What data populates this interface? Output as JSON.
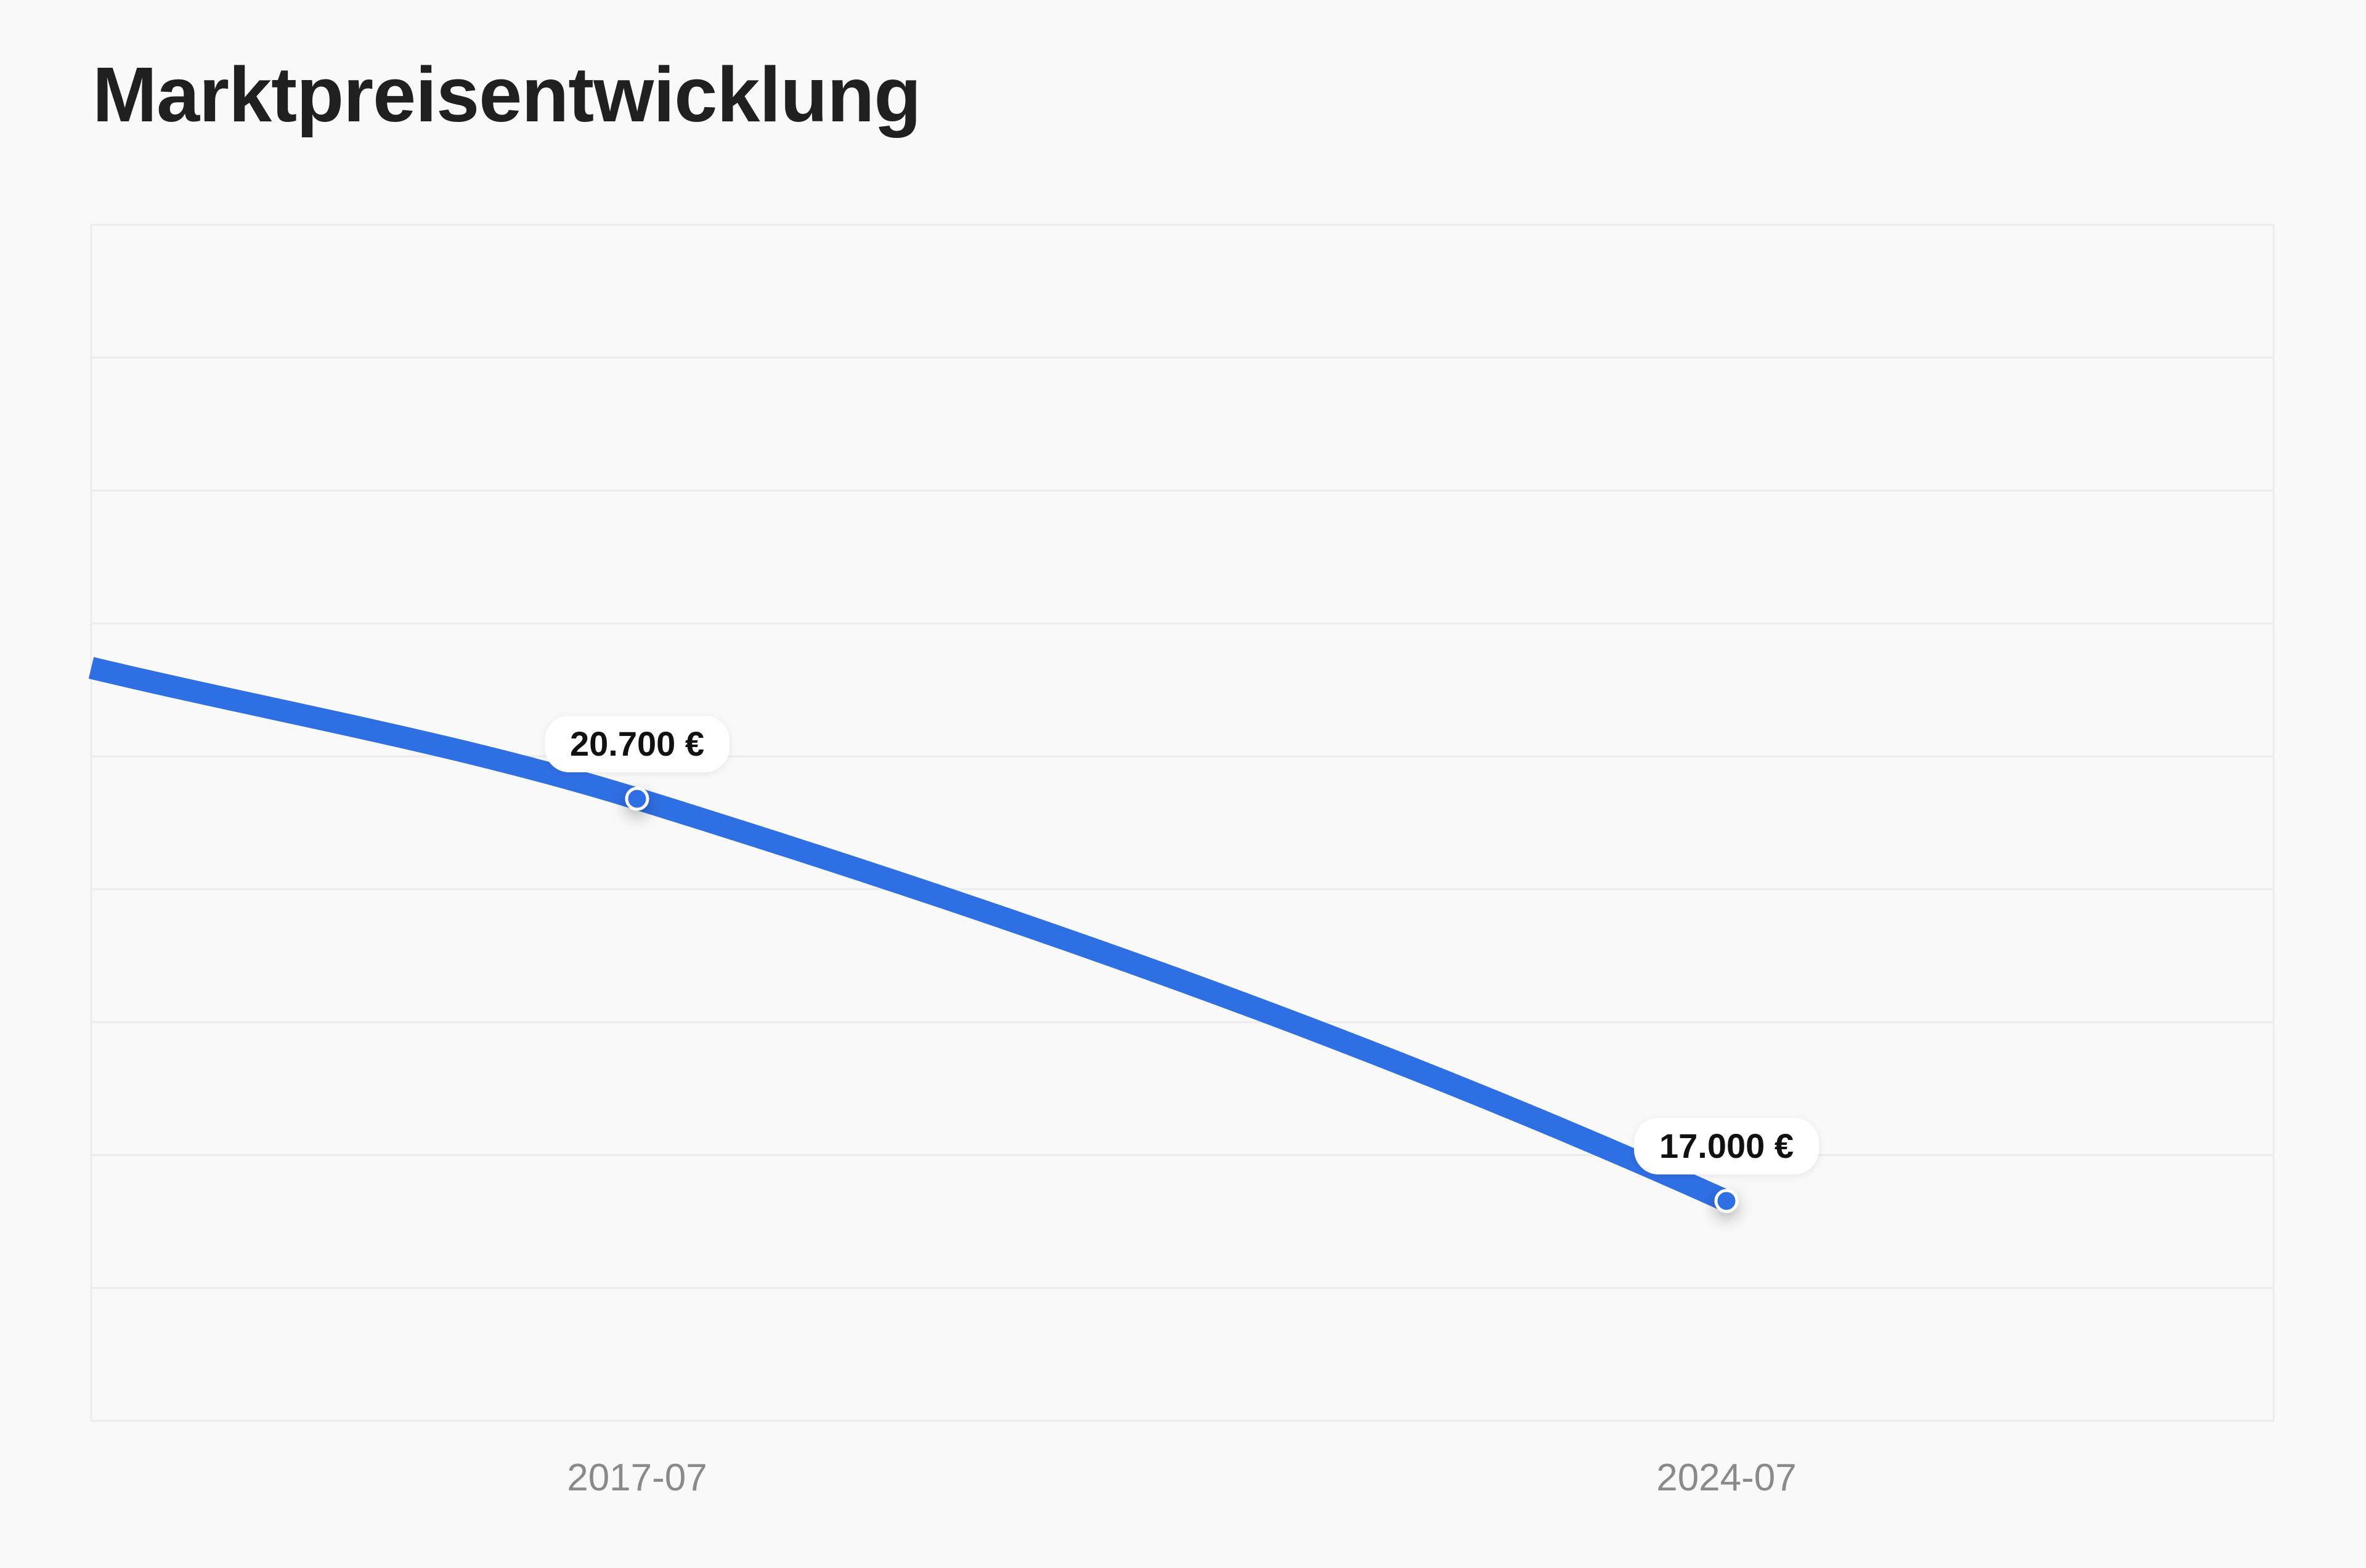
{
  "page": {
    "title": "Marktpreisentwicklung"
  },
  "colors": {
    "background": "#f9f9f9",
    "line": "#2f6fe4",
    "grid": "#ececec",
    "title": "#202020",
    "tick_label": "#8a8a8a"
  },
  "chart_data": {
    "type": "line",
    "title": "Marktpreisentwicklung",
    "xlabel": "",
    "ylabel": "",
    "grid": true,
    "legend": "none",
    "x_ticks": [
      "2017-07",
      "2024-07"
    ],
    "series": [
      {
        "points": [
          {
            "x": "2017-07",
            "y": 20700,
            "label": "20.700 €"
          },
          {
            "x": "2024-07",
            "y": 17000,
            "label": "17.000 €"
          }
        ]
      }
    ]
  }
}
